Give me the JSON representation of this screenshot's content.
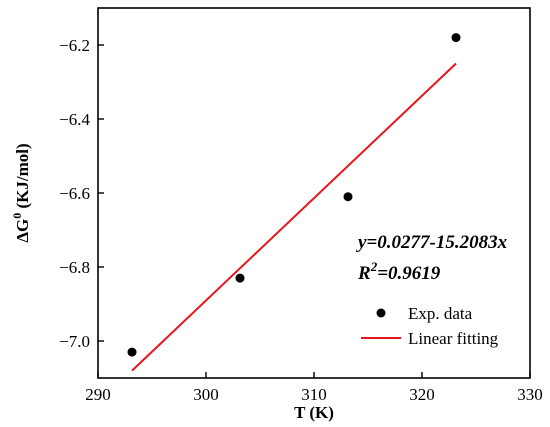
{
  "chart_data": {
    "type": "scatter",
    "xlabel": "T (K)",
    "ylabel_main": "ΔG",
    "ylabel_sup": "0",
    "ylabel_unit": " (KJ/mol)",
    "xlim": [
      290,
      330
    ],
    "ylim": [
      -7.1,
      -6.1
    ],
    "x_ticks": [
      290,
      300,
      310,
      320,
      330
    ],
    "y_ticks": [
      -7.0,
      -6.8,
      -6.6,
      -6.4,
      -6.2
    ],
    "x_tick_labels": [
      "290",
      "300",
      "310",
      "320",
      "330"
    ],
    "y_tick_labels": [
      "−7.0",
      "−6.8",
      "−6.6",
      "−6.4",
      "−6.2"
    ],
    "series": [
      {
        "name": "Exp. data",
        "kind": "scatter",
        "color": "#000000",
        "x": [
          293.15,
          303.15,
          313.15,
          323.15
        ],
        "y": [
          -7.03,
          -6.83,
          -6.61,
          -6.18
        ]
      },
      {
        "name": "Linear fitting",
        "kind": "line",
        "color": "#e8161a",
        "x": [
          293.15,
          323.15
        ],
        "y": [
          -7.08,
          -6.25
        ]
      }
    ],
    "annotation_equation": "y=0.0277-15.2083x",
    "annotation_r2_prefix": "R",
    "annotation_r2_sup": "2",
    "annotation_r2_value": "=0.9619",
    "legend_position": "bottom-right",
    "grid": false
  }
}
